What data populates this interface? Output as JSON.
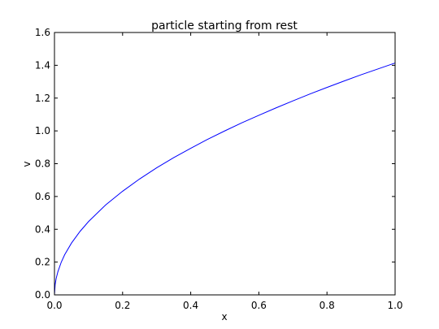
{
  "chart_data": {
    "type": "line",
    "title": "particle starting from rest",
    "xlabel": "x",
    "ylabel": "v",
    "xlim": [
      0.0,
      1.0
    ],
    "ylim": [
      0.0,
      1.6
    ],
    "xticks": [
      "0.0",
      "0.2",
      "0.4",
      "0.6",
      "0.8",
      "1.0"
    ],
    "yticks": [
      "0.0",
      "0.2",
      "0.4",
      "0.6",
      "0.8",
      "1.0",
      "1.2",
      "1.4",
      "1.6"
    ],
    "grid": false,
    "series": [
      {
        "color": "#0000ff",
        "x": [
          0.0,
          0.002,
          0.005,
          0.01,
          0.02,
          0.03,
          0.05,
          0.075,
          0.1,
          0.15,
          0.2,
          0.25,
          0.3,
          0.35,
          0.4,
          0.45,
          0.5,
          0.55,
          0.6,
          0.65,
          0.7,
          0.75,
          0.8,
          0.85,
          0.9,
          0.95,
          1.0
        ],
        "y": [
          0.0,
          0.063,
          0.1,
          0.141,
          0.2,
          0.245,
          0.316,
          0.387,
          0.447,
          0.548,
          0.632,
          0.707,
          0.775,
          0.837,
          0.894,
          0.949,
          1.0,
          1.049,
          1.095,
          1.14,
          1.183,
          1.225,
          1.265,
          1.304,
          1.342,
          1.378,
          1.414
        ]
      }
    ]
  }
}
